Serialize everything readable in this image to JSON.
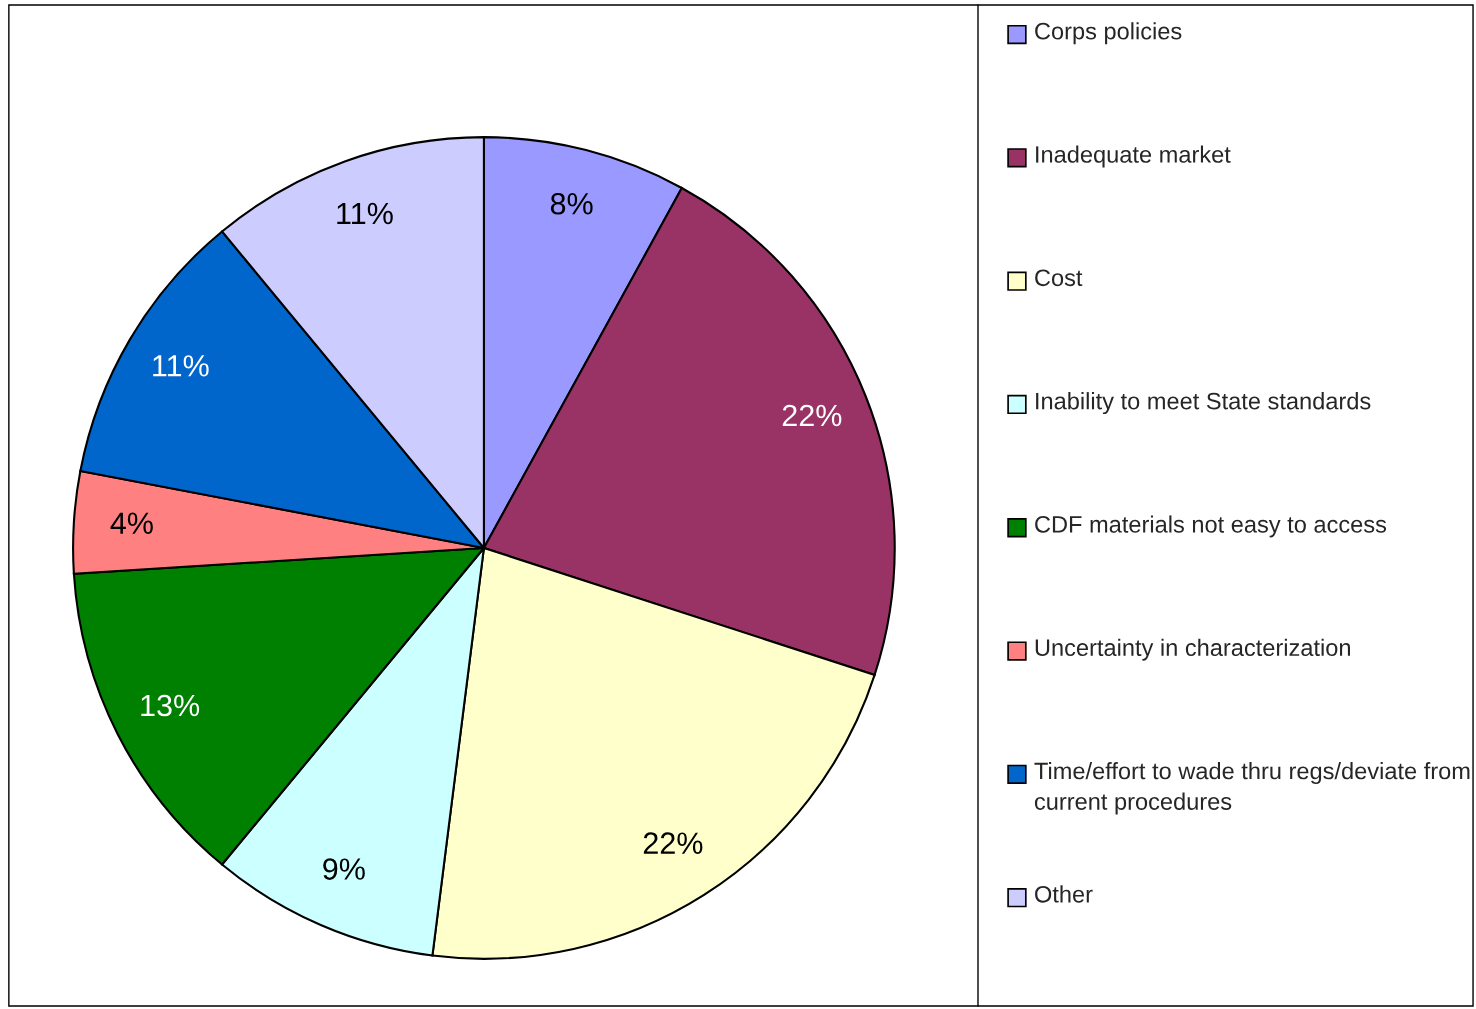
{
  "chart_data": {
    "type": "pie",
    "categories": [
      "Corps policies",
      "Inadequate market",
      "Cost",
      "Inability to meet State standards",
      "CDF materials not easy to access",
      "Uncertainty in characterization",
      "Time/effort to wade thru regs/deviate from current procedures",
      "Other"
    ],
    "values": [
      8,
      22,
      22,
      9,
      13,
      4,
      11,
      11
    ],
    "value_labels": [
      "8%",
      "22%",
      "22%",
      "9%",
      "13%",
      "4%",
      "11%",
      "11%"
    ],
    "colors": [
      "#9999ff",
      "#993366",
      "#ffffcc",
      "#ccffff",
      "#008000",
      "#ff8080",
      "#0066cc",
      "#ccccff"
    ],
    "legend": "right"
  }
}
